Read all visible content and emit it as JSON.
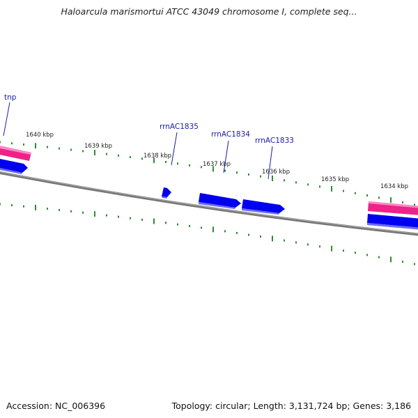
{
  "title": "Haloarcula marismortui ATCC 43049 chromosome I, complete seq...",
  "footer": {
    "accession": "Accession: NC_006396",
    "topology": "Topology: circular; Length: 3,131,724 bp; Genes: 3,186"
  },
  "ticks": [
    {
      "label": "1640 kbp"
    },
    {
      "label": "1639 kbp"
    },
    {
      "label": "1638 kbp"
    },
    {
      "label": "1637 kbp"
    },
    {
      "label": "1636 kbp"
    },
    {
      "label": "1635 kbp"
    },
    {
      "label": "1634 kbp"
    }
  ],
  "gene_labels": [
    {
      "name": "tnp"
    },
    {
      "name": "rrnAC1835"
    },
    {
      "name": "rrnAC1834"
    },
    {
      "name": "rrnAC1833"
    }
  ],
  "colors": {
    "backbone": "#777777",
    "tick": "#2e8b2e",
    "gene_blue": "#0000ee",
    "gene_pink": "#ee2288",
    "label": "#1a1aaa"
  }
}
